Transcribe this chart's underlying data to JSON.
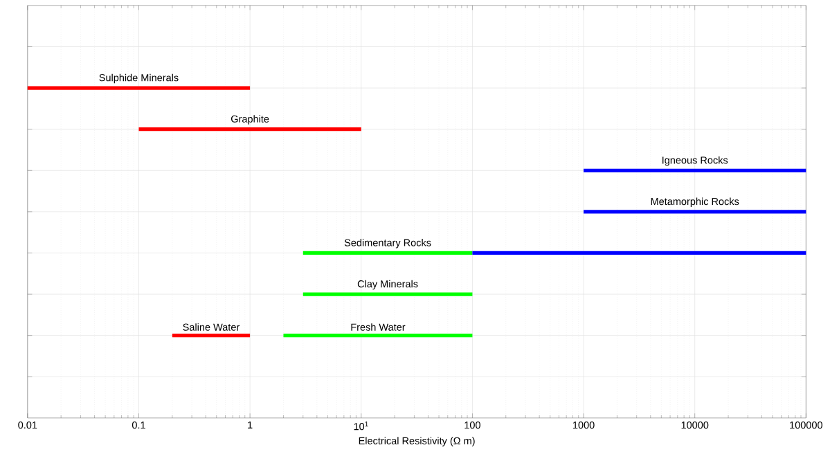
{
  "chart_data": {
    "type": "bar",
    "orientation": "horizontal",
    "xlabel": "Electrical Resistivity (Ω m)",
    "categories": [
      null,
      null,
      null,
      null,
      null,
      null,
      null,
      null,
      null
    ],
    "series": [
      {
        "color": "#ff0000",
        "base": [
          null,
          0.01,
          0.1,
          null,
          null,
          null,
          null,
          0.2,
          null
        ],
        "values": [
          null,
          0.99,
          9.9,
          null,
          null,
          null,
          null,
          0.8,
          null
        ],
        "value_labels": [
          null,
          "Sulphide Minerals",
          "Graphite",
          null,
          null,
          null,
          null,
          "Saline Water",
          null
        ]
      },
      {
        "color": "#00ff00",
        "base": [
          null,
          null,
          null,
          null,
          null,
          3,
          3,
          2,
          null
        ],
        "values": [
          null,
          null,
          null,
          null,
          null,
          97,
          97,
          98,
          null
        ],
        "value_labels": [
          null,
          null,
          null,
          null,
          null,
          "Sedimentary Rocks",
          "Clay Minerals",
          "Fresh Water",
          null
        ]
      },
      {
        "color": "#0000ff",
        "base": [
          null,
          null,
          null,
          1000,
          1000,
          100,
          null,
          null,
          null
        ],
        "values": [
          null,
          null,
          null,
          99000,
          99000,
          99900,
          null,
          null,
          null
        ],
        "value_labels": [
          null,
          null,
          null,
          "Igneous Rocks",
          "Metamorphic Rocks",
          null,
          null,
          null,
          null
        ]
      }
    ],
    "log": "x",
    "xlim": [
      0.01,
      100000
    ],
    "xticks": [
      0.01,
      0.1,
      1,
      {
        "value": 10,
        "label": "10$^{1}$"
      },
      100,
      1000,
      10000,
      100000
    ],
    "grid": true,
    "tick_labels": "x"
  }
}
